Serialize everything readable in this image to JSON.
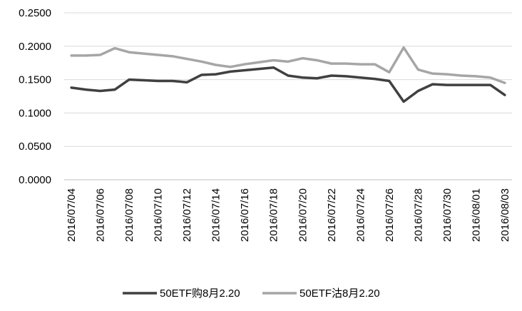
{
  "chart_data": {
    "type": "line",
    "x": [
      "2016/07/04",
      "2016/07/05",
      "2016/07/06",
      "2016/07/07",
      "2016/07/08",
      "2016/07/09",
      "2016/07/10",
      "2016/07/11",
      "2016/07/12",
      "2016/07/13",
      "2016/07/14",
      "2016/07/15",
      "2016/07/16",
      "2016/07/17",
      "2016/07/18",
      "2016/07/19",
      "2016/07/20",
      "2016/07/21",
      "2016/07/22",
      "2016/07/23",
      "2016/07/24",
      "2016/07/25",
      "2016/07/26",
      "2016/07/27",
      "2016/07/28",
      "2016/07/29",
      "2016/07/30",
      "2016/07/31",
      "2016/08/01",
      "2016/08/02",
      "2016/08/03"
    ],
    "x_tick_labels": [
      "2016/07/04",
      "2016/07/06",
      "2016/07/08",
      "2016/07/10",
      "2016/07/12",
      "2016/07/14",
      "2016/07/16",
      "2016/07/18",
      "2016/07/20",
      "2016/07/22",
      "2016/07/24",
      "2016/07/26",
      "2016/07/28",
      "2016/07/30",
      "2016/08/01",
      "2016/08/03"
    ],
    "y_tick_labels": [
      "0.0000",
      "0.0500",
      "0.1000",
      "0.1500",
      "0.2000",
      "0.2500"
    ],
    "ylim": [
      0,
      0.25
    ],
    "grid": true,
    "legend_position": "bottom",
    "series": [
      {
        "name": "50ETF购8月2.20",
        "color": "#404040",
        "values": [
          0.138,
          0.135,
          0.133,
          0.135,
          0.15,
          0.149,
          0.148,
          0.148,
          0.146,
          0.157,
          0.158,
          0.162,
          0.164,
          0.166,
          0.168,
          0.156,
          0.153,
          0.152,
          0.156,
          0.155,
          0.153,
          0.151,
          0.148,
          0.117,
          0.133,
          0.143,
          0.142,
          0.142,
          0.142,
          0.142,
          0.127
        ]
      },
      {
        "name": "50ETF沽8月2.20",
        "color": "#a6a6a6",
        "values": [
          0.186,
          0.186,
          0.187,
          0.197,
          0.191,
          0.189,
          0.187,
          0.185,
          0.181,
          0.177,
          0.172,
          0.169,
          0.173,
          0.176,
          0.179,
          0.177,
          0.182,
          0.179,
          0.174,
          0.174,
          0.173,
          0.173,
          0.161,
          0.198,
          0.165,
          0.159,
          0.158,
          0.156,
          0.155,
          0.153,
          0.145
        ]
      }
    ]
  }
}
